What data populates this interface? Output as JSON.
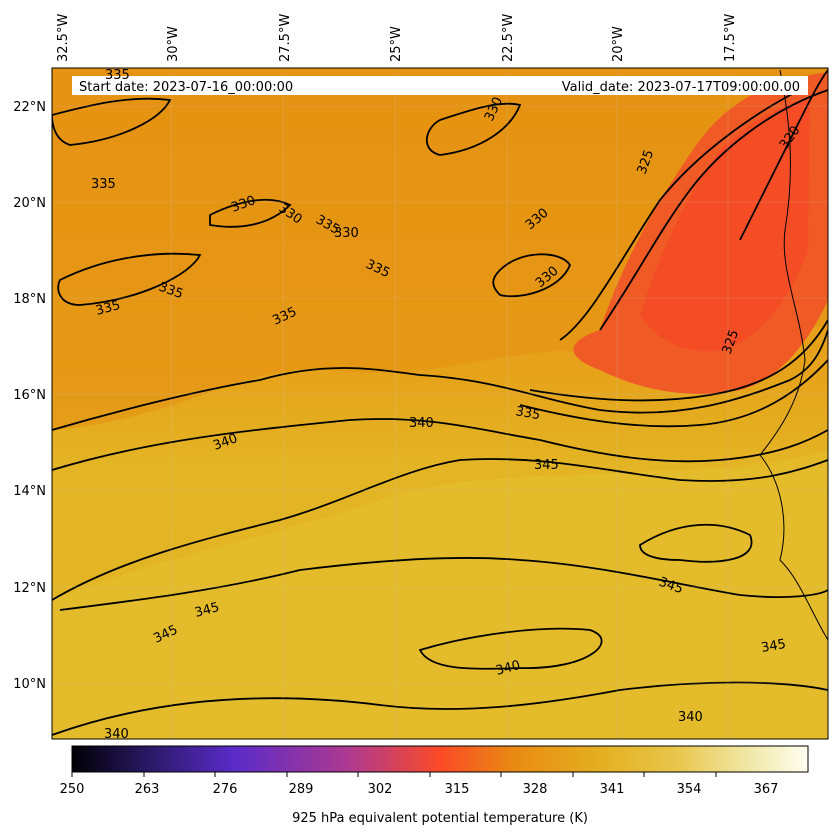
{
  "map": {
    "start_date": "Start date: 2023-07-16_00:00:00",
    "valid_date": "Valid_date: 2023-07-17T09:00:00.00",
    "lon_labels": [
      "32.5°W",
      "30°W",
      "27.5°W",
      "25°W",
      "22.5°W",
      "20°W",
      "17.5°W"
    ],
    "lat_labels": [
      "22°N",
      "20°N",
      "18°N",
      "16°N",
      "14°N",
      "12°N",
      "10°N"
    ],
    "contour_labels": [
      "335",
      "335",
      "330",
      "330",
      "330",
      "330",
      "335",
      "335",
      "330",
      "330",
      "335",
      "335",
      "335",
      "340",
      "340",
      "345",
      "335",
      "320",
      "325",
      "325",
      "345",
      "345",
      "345",
      "345",
      "340",
      "340",
      "340"
    ]
  },
  "colorbar": {
    "ticks": [
      "250",
      "263",
      "276",
      "289",
      "302",
      "315",
      "328",
      "341",
      "354",
      "367"
    ],
    "label": "925 hPa equivalent potential temperature (K)",
    "colors": [
      "#000004",
      "#2c1a6b",
      "#5a2bc9",
      "#b03a8e",
      "#fb4a26",
      "#e98a12",
      "#e4b021",
      "#e8c64b",
      "#f0e8a8",
      "#fffef0"
    ]
  }
}
